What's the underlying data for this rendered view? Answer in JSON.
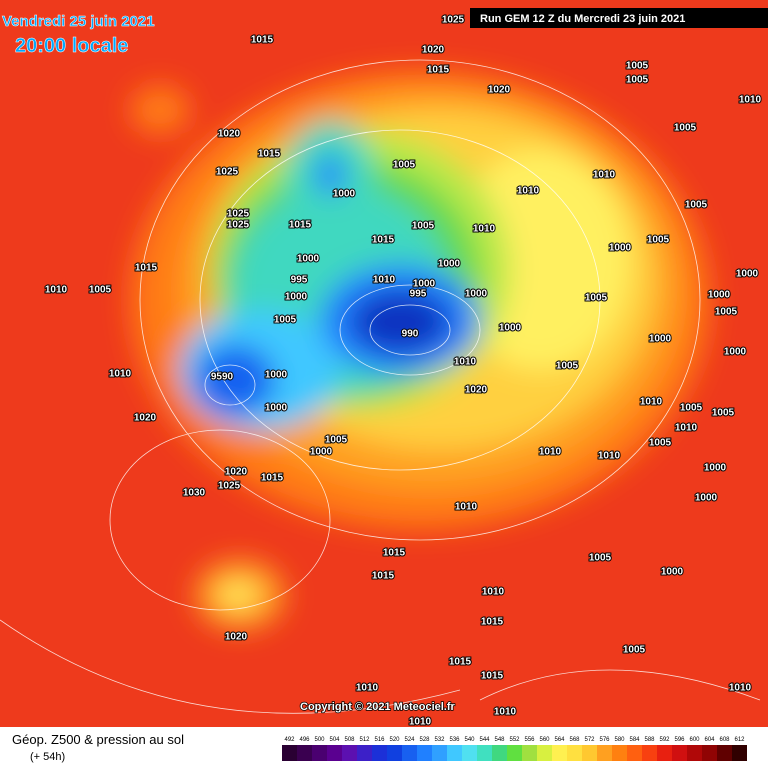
{
  "header": {
    "date": "Vendredi 25 juin 2021",
    "time": "20:00 locale",
    "run": "Run GEM 12 Z du Mercredi 23 juin 2021"
  },
  "footer": {
    "copyright": "Copyright © 2021 Meteociel.fr",
    "title": "Géop. Z500 & pression au sol",
    "lead": "(+ 54h)"
  },
  "legend": {
    "values": [
      492,
      496,
      500,
      504,
      508,
      512,
      516,
      520,
      524,
      528,
      532,
      536,
      540,
      544,
      548,
      552,
      556,
      560,
      564,
      568,
      572,
      576,
      580,
      584,
      588,
      592,
      596,
      600,
      604,
      608,
      612
    ],
    "colors": [
      "#2a0033",
      "#3a0050",
      "#4a0070",
      "#5a0090",
      "#5c10b0",
      "#3c20c8",
      "#1c30d8",
      "#1040e0",
      "#1860f0",
      "#2080ff",
      "#30a0ff",
      "#40c8ff",
      "#50e0f0",
      "#40e0c0",
      "#40d880",
      "#60e040",
      "#a0e040",
      "#d8f040",
      "#fff050",
      "#ffe040",
      "#ffc830",
      "#ffa020",
      "#ff8010",
      "#ff6010",
      "#f84010",
      "#e82010",
      "#d01010",
      "#b00808",
      "#900404",
      "#600000",
      "#300000"
    ]
  },
  "isobars": [
    "1025",
    "1015",
    "1020",
    "1015",
    "1020",
    "1005",
    "1005",
    "1010",
    "1005",
    "1020",
    "1015",
    "1025",
    "1005",
    "1000",
    "1010",
    "1010",
    "1005",
    "1025",
    "1025",
    "1015",
    "1005",
    "1010",
    "1015",
    "1000",
    "1005",
    "1000",
    "1000",
    "995",
    "1010",
    "1000",
    "1000",
    "1015",
    "1010",
    "1005",
    "1000",
    "995",
    "1000",
    "1005",
    "1000",
    "1005",
    "990",
    "1000",
    "1000",
    "1000",
    "1005",
    "1010",
    "1005",
    "1010",
    "9590",
    "1000",
    "1020",
    "1010",
    "1000",
    "1005",
    "1005",
    "1020",
    "1010",
    "1005",
    "1000",
    "1005",
    "1010",
    "1010",
    "1000",
    "1020",
    "1015",
    "1025",
    "1030",
    "1010",
    "1000",
    "1015",
    "1005",
    "1015",
    "1000",
    "1010",
    "1015",
    "1020",
    "1015",
    "1005",
    "1015",
    "1010",
    "1010",
    "1010",
    "1010"
  ]
}
